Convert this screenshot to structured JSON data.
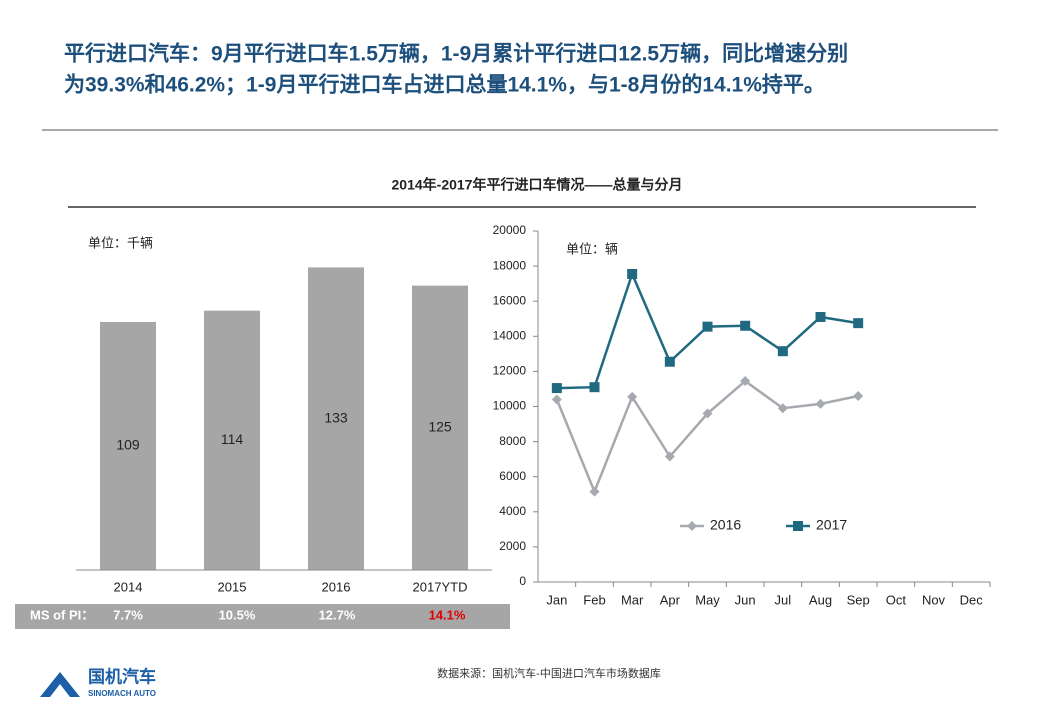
{
  "header": {
    "title_lines": [
      "平行进口汽车：9月平行进口车1.5万辆，1-9月累计平行进口12.5万辆，同比增速分别",
      "为39.3%和46.2%；1-9月平行进口车占进口总量14.1%，与1-8月份的14.1%持平。"
    ]
  },
  "section_title": "2014年-2017年平行进口车情况——总量与分月",
  "chart_data": [
    {
      "type": "bar",
      "annotation": "单位：千辆",
      "categories": [
        "2014",
        "2015",
        "2016",
        "2017YTD"
      ],
      "values": [
        109,
        114,
        133,
        125
      ],
      "color": "#a6a6a6"
    },
    {
      "type": "line",
      "annotation": "单位：辆",
      "categories": [
        "Jan",
        "Feb",
        "Mar",
        "Apr",
        "May",
        "Jun",
        "Jul",
        "Aug",
        "Sep",
        "Oct",
        "Nov",
        "Dec"
      ],
      "ylim": [
        0,
        20000
      ],
      "yticks": [
        0,
        2000,
        4000,
        6000,
        8000,
        10000,
        12000,
        14000,
        16000,
        18000,
        20000
      ],
      "grid": false,
      "legend": "lower-right",
      "series": [
        {
          "name": "2016",
          "color": "#a6aab0",
          "marker": "diamond",
          "values": [
            10400,
            5150,
            10550,
            7150,
            9600,
            11450,
            9900,
            10150,
            10600,
            null,
            null,
            null
          ]
        },
        {
          "name": "2017",
          "color": "#1f6a80",
          "marker": "square",
          "values": [
            11050,
            11100,
            17550,
            12550,
            14550,
            14600,
            13150,
            15100,
            14750,
            null,
            null,
            null
          ]
        }
      ]
    }
  ],
  "ms_row": {
    "label": "MS of PI：",
    "cells": [
      "7.7%",
      "10.5%",
      "12.7%",
      "14.1%"
    ]
  },
  "footer": {
    "source": "数据来源：国机汽车-中国进口汽车市场数据库",
    "logo_name": "国机汽车",
    "logo_sub": "SINOMACH AUTO"
  }
}
